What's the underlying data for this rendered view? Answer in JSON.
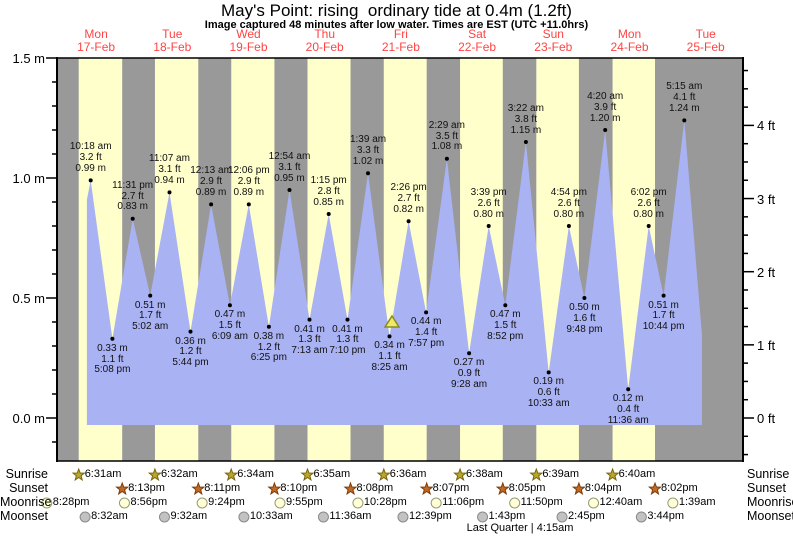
{
  "title": "May's Point: rising  ordinary tide at 0.4m (1.2ft)",
  "subtitle": "Image captured 48 minutes after low water. Times are EST (UTC +11.0hrs)",
  "days": [
    {
      "dow": "Mon",
      "date": "17-Feb"
    },
    {
      "dow": "Tue",
      "date": "18-Feb"
    },
    {
      "dow": "Wed",
      "date": "19-Feb"
    },
    {
      "dow": "Thu",
      "date": "20-Feb"
    },
    {
      "dow": "Fri",
      "date": "21-Feb"
    },
    {
      "dow": "Sat",
      "date": "22-Feb"
    },
    {
      "dow": "Sun",
      "date": "23-Feb"
    },
    {
      "dow": "Mon",
      "date": "24-Feb"
    },
    {
      "dow": "Tue",
      "date": "25-Feb"
    }
  ],
  "y_axis": {
    "left_labels": [
      {
        "text": "1.5 m",
        "value": 1.5
      },
      {
        "text": "1.0 m",
        "value": 1.0
      },
      {
        "text": "0.5 m",
        "value": 0.5
      },
      {
        "text": "0.0 m",
        "value": 0.0
      }
    ],
    "right_labels": [
      {
        "text": "4 ft",
        "value": 4
      },
      {
        "text": "3 ft",
        "value": 3
      },
      {
        "text": "2 ft",
        "value": 2
      },
      {
        "text": "1 ft",
        "value": 1
      },
      {
        "text": "0 ft",
        "value": 0
      }
    ]
  },
  "chart_data": {
    "type": "area",
    "title": "May's Point tide heights, 17-Feb to 25-Feb",
    "x_unit": "days",
    "y_unit_left": "m",
    "y_unit_right": "ft",
    "y_range_m": [
      -0.175,
      1.5
    ],
    "x_range_days": 9,
    "curve_start": {
      "t_hours": 9.1,
      "h": 0.91
    },
    "curve_end": {
      "t_hours": 202.8,
      "h": 0.35
    },
    "current_marker": {
      "near": "8:25 am low water",
      "t_hours": 105.2,
      "h": 0.4
    },
    "extremes": [
      {
        "day": 0,
        "time": "10:18 am",
        "kind": "high",
        "ft": "3.2 ft",
        "m": "0.99 m",
        "h": 0.99
      },
      {
        "day": 0,
        "time": "5:08 pm",
        "kind": "low",
        "ft": "1.1 ft",
        "m": "0.33 m",
        "h": 0.33
      },
      {
        "day": 0,
        "time": "11:31 pm",
        "kind": "high",
        "ft": "2.7 ft",
        "m": "0.83 m",
        "h": 0.83
      },
      {
        "day": 1,
        "time": "5:02 am",
        "kind": "low",
        "ft": "1.7 ft",
        "m": "0.51 m",
        "h": 0.51
      },
      {
        "day": 1,
        "time": "11:07 am",
        "kind": "high",
        "ft": "3.1 ft",
        "m": "0.94 m",
        "h": 0.94
      },
      {
        "day": 1,
        "time": "5:44 pm",
        "kind": "low",
        "ft": "1.2 ft",
        "m": "0.36 m",
        "h": 0.36
      },
      {
        "day": 2,
        "time": "12:13 am",
        "kind": "high",
        "ft": "2.9 ft",
        "m": "0.89 m",
        "h": 0.89
      },
      {
        "day": 2,
        "time": "6:09 am",
        "kind": "low",
        "ft": "1.5 ft",
        "m": "0.47 m",
        "h": 0.47
      },
      {
        "day": 2,
        "time": "12:06 pm",
        "kind": "high",
        "ft": "2.9 ft",
        "m": "0.89 m",
        "h": 0.89
      },
      {
        "day": 2,
        "time": "6:25 pm",
        "kind": "low",
        "ft": "1.2 ft",
        "m": "0.38 m",
        "h": 0.38
      },
      {
        "day": 3,
        "time": "12:54 am",
        "kind": "high",
        "ft": "3.1 ft",
        "m": "0.95 m",
        "h": 0.95
      },
      {
        "day": 3,
        "time": "7:13 am",
        "kind": "low",
        "ft": "1.3 ft",
        "m": "0.41 m",
        "h": 0.41
      },
      {
        "day": 3,
        "time": "1:15 pm",
        "kind": "high",
        "ft": "2.8 ft",
        "m": "0.85 m",
        "h": 0.85
      },
      {
        "day": 3,
        "time": "7:10 pm",
        "kind": "low",
        "ft": "1.3 ft",
        "m": "0.41 m",
        "h": 0.41
      },
      {
        "day": 4,
        "time": "1:39 am",
        "kind": "high",
        "ft": "3.3 ft",
        "m": "1.02 m",
        "h": 1.02
      },
      {
        "day": 4,
        "time": "8:25 am",
        "kind": "low",
        "ft": "1.1 ft",
        "m": "0.34 m",
        "h": 0.34
      },
      {
        "day": 4,
        "time": "2:26 pm",
        "kind": "high",
        "ft": "2.7 ft",
        "m": "0.82 m",
        "h": 0.82
      },
      {
        "day": 4,
        "time": "7:57 pm",
        "kind": "low",
        "ft": "1.4 ft",
        "m": "0.44 m",
        "h": 0.44
      },
      {
        "day": 5,
        "time": "2:29 am",
        "kind": "high",
        "ft": "3.5 ft",
        "m": "1.08 m",
        "h": 1.08
      },
      {
        "day": 5,
        "time": "9:28 am",
        "kind": "low",
        "ft": "0.9 ft",
        "m": "0.27 m",
        "h": 0.27
      },
      {
        "day": 5,
        "time": "3:39 pm",
        "kind": "high",
        "ft": "2.6 ft",
        "m": "0.80 m",
        "h": 0.8
      },
      {
        "day": 5,
        "time": "8:52 pm",
        "kind": "low",
        "ft": "1.5 ft",
        "m": "0.47 m",
        "h": 0.47
      },
      {
        "day": 6,
        "time": "3:22 am",
        "kind": "high",
        "ft": "3.8 ft",
        "m": "1.15 m",
        "h": 1.15
      },
      {
        "day": 6,
        "time": "10:33 am",
        "kind": "low",
        "ft": "0.6 ft",
        "m": "0.19 m",
        "h": 0.19
      },
      {
        "day": 6,
        "time": "4:54 pm",
        "kind": "high",
        "ft": "2.6 ft",
        "m": "0.80 m",
        "h": 0.8
      },
      {
        "day": 6,
        "time": "9:48 pm",
        "kind": "low",
        "ft": "1.6 ft",
        "m": "0.50 m",
        "h": 0.5
      },
      {
        "day": 7,
        "time": "4:20 am",
        "kind": "high",
        "ft": "3.9 ft",
        "m": "1.20 m",
        "h": 1.2
      },
      {
        "day": 7,
        "time": "11:36 am",
        "kind": "low",
        "ft": "0.4 ft",
        "m": "0.12 m",
        "h": 0.12
      },
      {
        "day": 7,
        "time": "6:02 pm",
        "kind": "high",
        "ft": "2.6 ft",
        "m": "0.80 m",
        "h": 0.8
      },
      {
        "day": 7,
        "time": "10:44 pm",
        "kind": "low",
        "ft": "1.7 ft",
        "m": "0.51 m",
        "h": 0.51
      },
      {
        "day": 8,
        "time": "5:15 am",
        "kind": "high",
        "ft": "4.1 ft",
        "m": "1.24 m",
        "h": 1.24
      }
    ]
  },
  "astro": {
    "rows": [
      {
        "key": "sunrise",
        "label": "Sunrise",
        "icon": "sunrise-star",
        "events": [
          {
            "day": 0,
            "time": "6:31am"
          },
          {
            "day": 1,
            "time": "6:32am"
          },
          {
            "day": 2,
            "time": "6:34am"
          },
          {
            "day": 3,
            "time": "6:35am"
          },
          {
            "day": 4,
            "time": "6:36am"
          },
          {
            "day": 5,
            "time": "6:38am"
          },
          {
            "day": 6,
            "time": "6:39am"
          },
          {
            "day": 7,
            "time": "6:40am"
          }
        ]
      },
      {
        "key": "sunset",
        "label": "Sunset",
        "icon": "sunset-star",
        "events": [
          {
            "day": 0,
            "time": "8:13pm"
          },
          {
            "day": 1,
            "time": "8:11pm"
          },
          {
            "day": 2,
            "time": "8:10pm"
          },
          {
            "day": 3,
            "time": "8:08pm"
          },
          {
            "day": 4,
            "time": "8:07pm"
          },
          {
            "day": 5,
            "time": "8:05pm"
          },
          {
            "day": 6,
            "time": "8:04pm"
          },
          {
            "day": 7,
            "time": "8:02pm"
          }
        ]
      },
      {
        "key": "moonrise",
        "label": "Moonrise",
        "icon": "moonrise-circle",
        "events": [
          {
            "day": -1,
            "time": "8:28pm"
          },
          {
            "day": 0,
            "time": "8:56pm"
          },
          {
            "day": 1,
            "time": "9:24pm"
          },
          {
            "day": 2,
            "time": "9:55pm"
          },
          {
            "day": 3,
            "time": "10:28pm"
          },
          {
            "day": 4,
            "time": "11:06pm"
          },
          {
            "day": 5,
            "time": "11:50pm"
          },
          {
            "day": 7,
            "time": "12:40am"
          },
          {
            "day": 8,
            "time": "1:39am"
          }
        ]
      },
      {
        "key": "moonset",
        "label": "Moonset",
        "icon": "moonset-circle",
        "events": [
          {
            "day": 0,
            "time": "8:32am"
          },
          {
            "day": 1,
            "time": "9:32am"
          },
          {
            "day": 2,
            "time": "10:33am"
          },
          {
            "day": 3,
            "time": "11:36am"
          },
          {
            "day": 4,
            "time": "12:39pm"
          },
          {
            "day": 5,
            "time": "1:43pm"
          },
          {
            "day": 6,
            "time": "2:45pm"
          },
          {
            "day": 7,
            "time": "3:44pm"
          }
        ]
      }
    ],
    "moon_phase": "Last Quarter | 4:15am"
  },
  "colors": {
    "night_band": "#999999",
    "daylight_band": "#ffffcc",
    "tide_fill": "#a9b2f3",
    "day_label": "#ff4444",
    "annotation": "#111111",
    "sunrise_star": "#b9a62b",
    "sunrise_star_edge": "#79650f",
    "sunset_star": "#c26a24",
    "sunset_star_edge": "#7a3c0c",
    "moonrise_fill": "#ffffd9",
    "moonrise_edge": "#9a9a70",
    "moonset_fill": "#c2c2c2",
    "moonset_edge": "#8a8a8a",
    "marker_fill": "#f0e868",
    "marker_edge": "#8a8a20"
  }
}
